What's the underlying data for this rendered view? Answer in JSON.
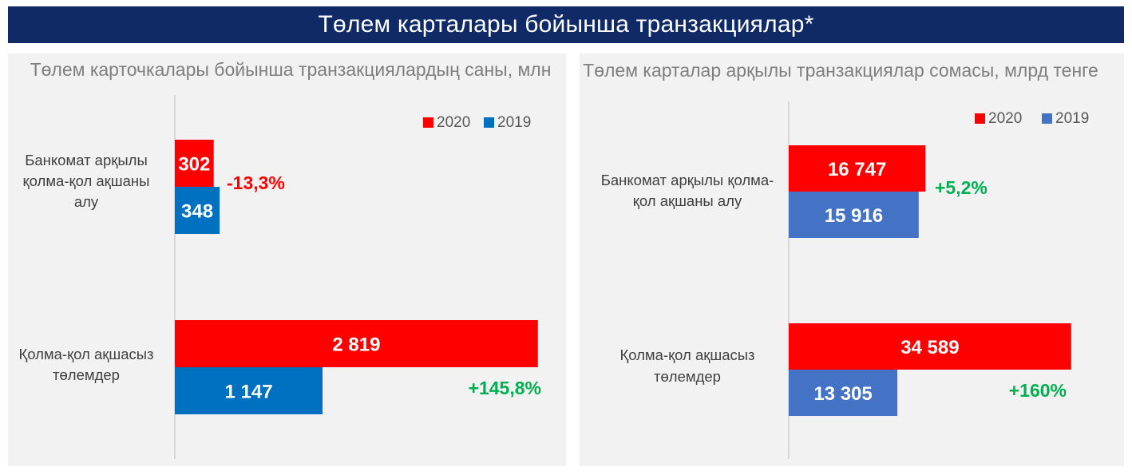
{
  "header": {
    "title": "Төлем карталары бойынша транзакциялар*"
  },
  "chart_data": [
    {
      "type": "bar",
      "orientation": "horizontal",
      "title": "Төлем карточкалары бойынша транзакциялардың саны, млн",
      "legend_position": "top-right",
      "categories": [
        [
          "Банкомат арқылы",
          "қолма-қол ақшаны",
          "алу"
        ],
        [
          "Қолма-қол ақшасыз",
          "төлемдер"
        ]
      ],
      "series": [
        {
          "name": "2020",
          "color": "#ff0000",
          "values": [
            302,
            2819
          ],
          "value_labels": [
            "302",
            "2 819"
          ]
        },
        {
          "name": "2019",
          "color": "#0070c0",
          "values": [
            348,
            1147
          ],
          "value_labels": [
            "348",
            "1 147"
          ]
        }
      ],
      "annotations": [
        {
          "text": "-13,3%",
          "color": "#ff0000"
        },
        {
          "text": "+145,8%",
          "color": "#00b050"
        }
      ],
      "xlim": [
        0,
        3000
      ]
    },
    {
      "type": "bar",
      "orientation": "horizontal",
      "title": "Төлем карталар арқылы транзакциялар сомасы, млрд тенге",
      "legend_position": "top-right",
      "categories": [
        [
          "Банкомат арқылы қолма-",
          "қол ақшаны алу"
        ],
        [
          "Қолма-қол ақшасыз",
          "төлемдер"
        ]
      ],
      "series": [
        {
          "name": "2020",
          "color": "#ff0000",
          "values": [
            16747,
            34589
          ],
          "value_labels": [
            "16 747",
            "34 589"
          ]
        },
        {
          "name": "2019",
          "color": "#4472c4",
          "values": [
            15916,
            13305
          ],
          "value_labels": [
            "15 916",
            "13 305"
          ]
        }
      ],
      "annotations": [
        {
          "text": "+5,2%",
          "color": "#00b050"
        },
        {
          "text": "+160%",
          "color": "#00b050"
        }
      ],
      "xlim": [
        0,
        35000
      ]
    }
  ]
}
